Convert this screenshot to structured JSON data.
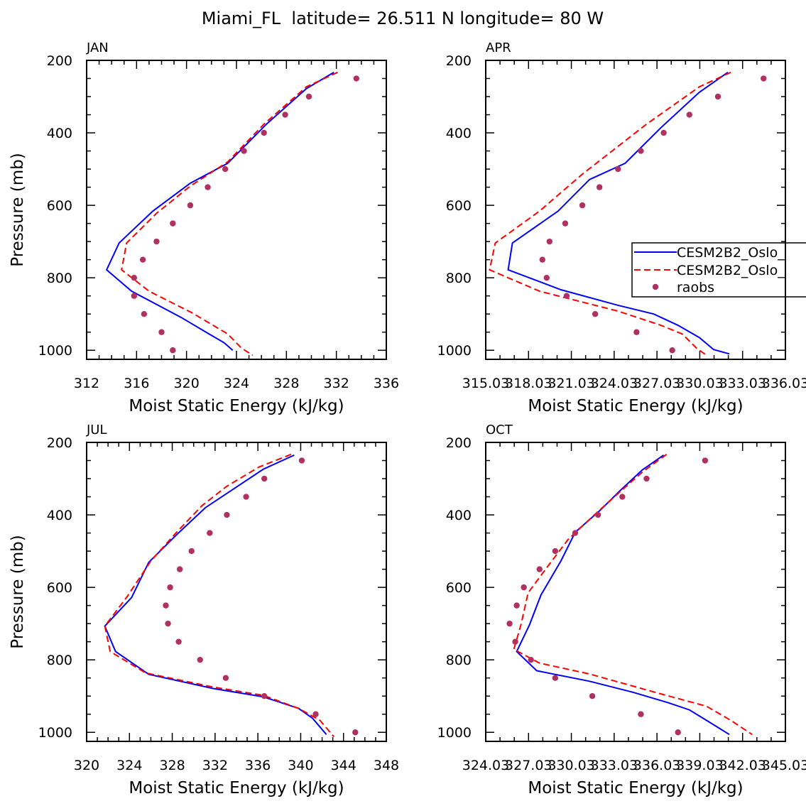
{
  "title": "Miami_FL  latitude= 26.511 N longitude= 80 W",
  "colors": {
    "model1": "#0000ff",
    "model2": "#ff0000",
    "obs": "#b03060"
  },
  "legend": {
    "entries": [
      "CESM2B2_Oslo_",
      "CESM2B2_Oslo_",
      "raobs"
    ],
    "placement": "right, APR panel"
  },
  "chart_data": [
    {
      "type": "line",
      "panel": "JAN",
      "xlabel": "Moist Static Energy (kJ/kg)",
      "ylabel": "Pressure (mb)",
      "xlim": [
        312,
        336
      ],
      "ylim": [
        200,
        1025
      ],
      "y_inverted": true,
      "xticks": [
        "312",
        "316",
        "320",
        "324",
        "328",
        "332",
        "336"
      ],
      "xtick_values": [
        312,
        316,
        320,
        324,
        328,
        332,
        336
      ],
      "yticks": [
        200,
        400,
        600,
        800,
        1000
      ],
      "series": [
        {
          "name": "CESM2B2_Oslo_",
          "style": "solid",
          "x": [
            331.8,
            329.6,
            326.4,
            323.3,
            320.3,
            317.3,
            314.6,
            313.6,
            315.6,
            319.6,
            321.8,
            323.0,
            323.7
          ],
          "y": [
            233,
            278,
            376,
            484,
            539,
            616,
            704,
            778,
            837,
            910,
            955,
            979,
            1000
          ]
        },
        {
          "name": "CESM2B2_Oslo_",
          "style": "dashed",
          "x": [
            332.1,
            329.6,
            326.2,
            323.3,
            320.3,
            317.6,
            315.2,
            314.8,
            317.0,
            320.4,
            323.3,
            324.4,
            325.3
          ],
          "y": [
            233,
            273,
            376,
            480,
            547,
            622,
            704,
            778,
            837,
            896,
            955,
            994,
            1014
          ]
        },
        {
          "name": "raobs",
          "style": "dots",
          "x": [
            333.6,
            329.8,
            327.9,
            326.2,
            324.6,
            323.1,
            321.7,
            320.3,
            318.9,
            317.6,
            316.5,
            315.8,
            315.8,
            316.6,
            318.0,
            318.9
          ],
          "y": [
            250,
            300,
            350,
            400,
            450,
            500,
            550,
            600,
            650,
            700,
            750,
            800,
            850,
            900,
            950,
            1000
          ]
        }
      ]
    },
    {
      "type": "line",
      "panel": "APR",
      "xlabel": "Moist Static Energy (kJ/kg)",
      "ylabel": "",
      "xlim": [
        315.03,
        336.03
      ],
      "ylim": [
        200,
        1025
      ],
      "y_inverted": true,
      "xticks": [
        "315.03",
        "318.03",
        "321.03",
        "324.03",
        "327.03",
        "330.03",
        "333.03",
        "336.03"
      ],
      "xtick_values": [
        315.03,
        318.03,
        321.03,
        324.03,
        327.03,
        330.03,
        333.03,
        336.03
      ],
      "yticks": [
        200,
        400,
        600,
        800,
        1000
      ],
      "series": [
        {
          "name": "CESM2B2_Oslo_",
          "style": "solid",
          "x": [
            332.0,
            330.0,
            327.3,
            324.8,
            322.3,
            320.1,
            316.9,
            316.6,
            320.3,
            324.3,
            326.8,
            328.5,
            330.0,
            331.0,
            332.1
          ],
          "y": [
            233,
            288,
            386,
            484,
            529,
            616,
            704,
            778,
            833,
            876,
            900,
            931,
            965,
            998,
            1010
          ]
        },
        {
          "name": "CESM2B2_Oslo_",
          "style": "dashed",
          "x": [
            332.2,
            330.0,
            326.3,
            321.8,
            318.8,
            315.7,
            315.3,
            318.8,
            324.3,
            327.3,
            328.8,
            329.8,
            330.5
          ],
          "y": [
            233,
            273,
            376,
            514,
            616,
            704,
            778,
            837,
            892,
            931,
            955,
            994,
            1014
          ]
        },
        {
          "name": "raobs",
          "style": "dots",
          "x": [
            334.5,
            331.3,
            329.3,
            327.5,
            325.9,
            324.3,
            323.0,
            321.8,
            320.6,
            319.5,
            319.0,
            319.3,
            320.7,
            322.7,
            325.6,
            328.1
          ],
          "y": [
            250,
            300,
            350,
            400,
            450,
            500,
            550,
            600,
            650,
            700,
            750,
            800,
            850,
            900,
            950,
            1000
          ]
        }
      ]
    },
    {
      "type": "line",
      "panel": "JUL",
      "xlabel": "Moist Static Energy (kJ/kg)",
      "ylabel": "Pressure (mb)",
      "xlim": [
        320,
        348
      ],
      "ylim": [
        200,
        1025
      ],
      "y_inverted": true,
      "xticks": [
        "320",
        "324",
        "328",
        "332",
        "336",
        "340",
        "344",
        "348"
      ],
      "xtick_values": [
        320,
        324,
        328,
        332,
        336,
        340,
        344,
        348
      ],
      "yticks": [
        200,
        400,
        600,
        800,
        1000
      ],
      "series": [
        {
          "name": "CESM2B2_Oslo_",
          "style": "solid",
          "x": [
            339.4,
            336.5,
            333.8,
            331.1,
            328.5,
            325.8,
            324.2,
            321.7,
            322.7,
            325.8,
            331.8,
            336.5,
            339.8,
            341.1,
            342.4
          ],
          "y": [
            235,
            274,
            327,
            380,
            452,
            531,
            628,
            707,
            777,
            840,
            879,
            902,
            934,
            961,
            1006
          ]
        },
        {
          "name": "CESM2B2_Oslo_",
          "style": "dashed",
          "x": [
            339.1,
            336.1,
            333.1,
            330.8,
            328.4,
            326.0,
            323.8,
            321.7,
            322.2,
            325.5,
            331.8,
            336.5,
            339.8,
            341.8,
            343.1
          ],
          "y": [
            233,
            268,
            321,
            374,
            448,
            527,
            625,
            707,
            777,
            836,
            875,
            898,
            934,
            967,
            1012
          ]
        },
        {
          "name": "raobs",
          "style": "dots",
          "x": [
            340.1,
            336.6,
            334.9,
            333.1,
            331.5,
            329.8,
            328.7,
            327.8,
            327.4,
            327.6,
            328.6,
            330.6,
            333.0,
            336.6,
            341.4,
            345.1
          ],
          "y": [
            250,
            300,
            350,
            400,
            450,
            500,
            550,
            600,
            650,
            700,
            750,
            800,
            850,
            900,
            950,
            1000
          ]
        }
      ]
    },
    {
      "type": "line",
      "panel": "OCT",
      "xlabel": "Moist Static Energy (kJ/kg)",
      "ylabel": "",
      "xlim": [
        324.03,
        345.03
      ],
      "ylim": [
        200,
        1025
      ],
      "y_inverted": true,
      "xticks": [
        "324.03",
        "327.03",
        "330.03",
        "333.03",
        "336.03",
        "339.03",
        "342.03",
        "345.03"
      ],
      "xtick_values": [
        324.03,
        327.03,
        330.03,
        333.03,
        336.03,
        339.03,
        342.03,
        345.03
      ],
      "yticks": [
        200,
        400,
        600,
        800,
        1000
      ],
      "series": [
        {
          "name": "CESM2B2_Oslo_",
          "style": "solid",
          "x": [
            336.5,
            335.0,
            333.5,
            332.0,
            330.3,
            329.3,
            327.9,
            327.1,
            326.2,
            327.6,
            331.3,
            334.3,
            336.8,
            338.3,
            339.5,
            341.1
          ],
          "y": [
            235,
            276,
            331,
            389,
            448,
            527,
            621,
            703,
            777,
            830,
            859,
            889,
            918,
            938,
            967,
            1006
          ]
        },
        {
          "name": "CESM2B2_Oslo_",
          "style": "dashed",
          "x": [
            336.7,
            335.0,
            333.3,
            331.5,
            329.8,
            328.3,
            327.0,
            326.5,
            326.0,
            327.8,
            331.3,
            336.3,
            339.5,
            341.2,
            342.7
          ],
          "y": [
            233,
            282,
            341,
            405,
            468,
            546,
            615,
            703,
            771,
            809,
            839,
            894,
            928,
            967,
            1006
          ]
        },
        {
          "name": "raobs",
          "style": "dots",
          "x": [
            339.4,
            335.3,
            333.6,
            331.9,
            330.3,
            328.9,
            327.8,
            326.7,
            326.2,
            325.7,
            326.1,
            327.2,
            328.9,
            331.5,
            334.9,
            337.5
          ],
          "y": [
            250,
            300,
            350,
            400,
            450,
            500,
            550,
            600,
            650,
            700,
            750,
            800,
            850,
            900,
            950,
            1000
          ]
        }
      ]
    }
  ]
}
